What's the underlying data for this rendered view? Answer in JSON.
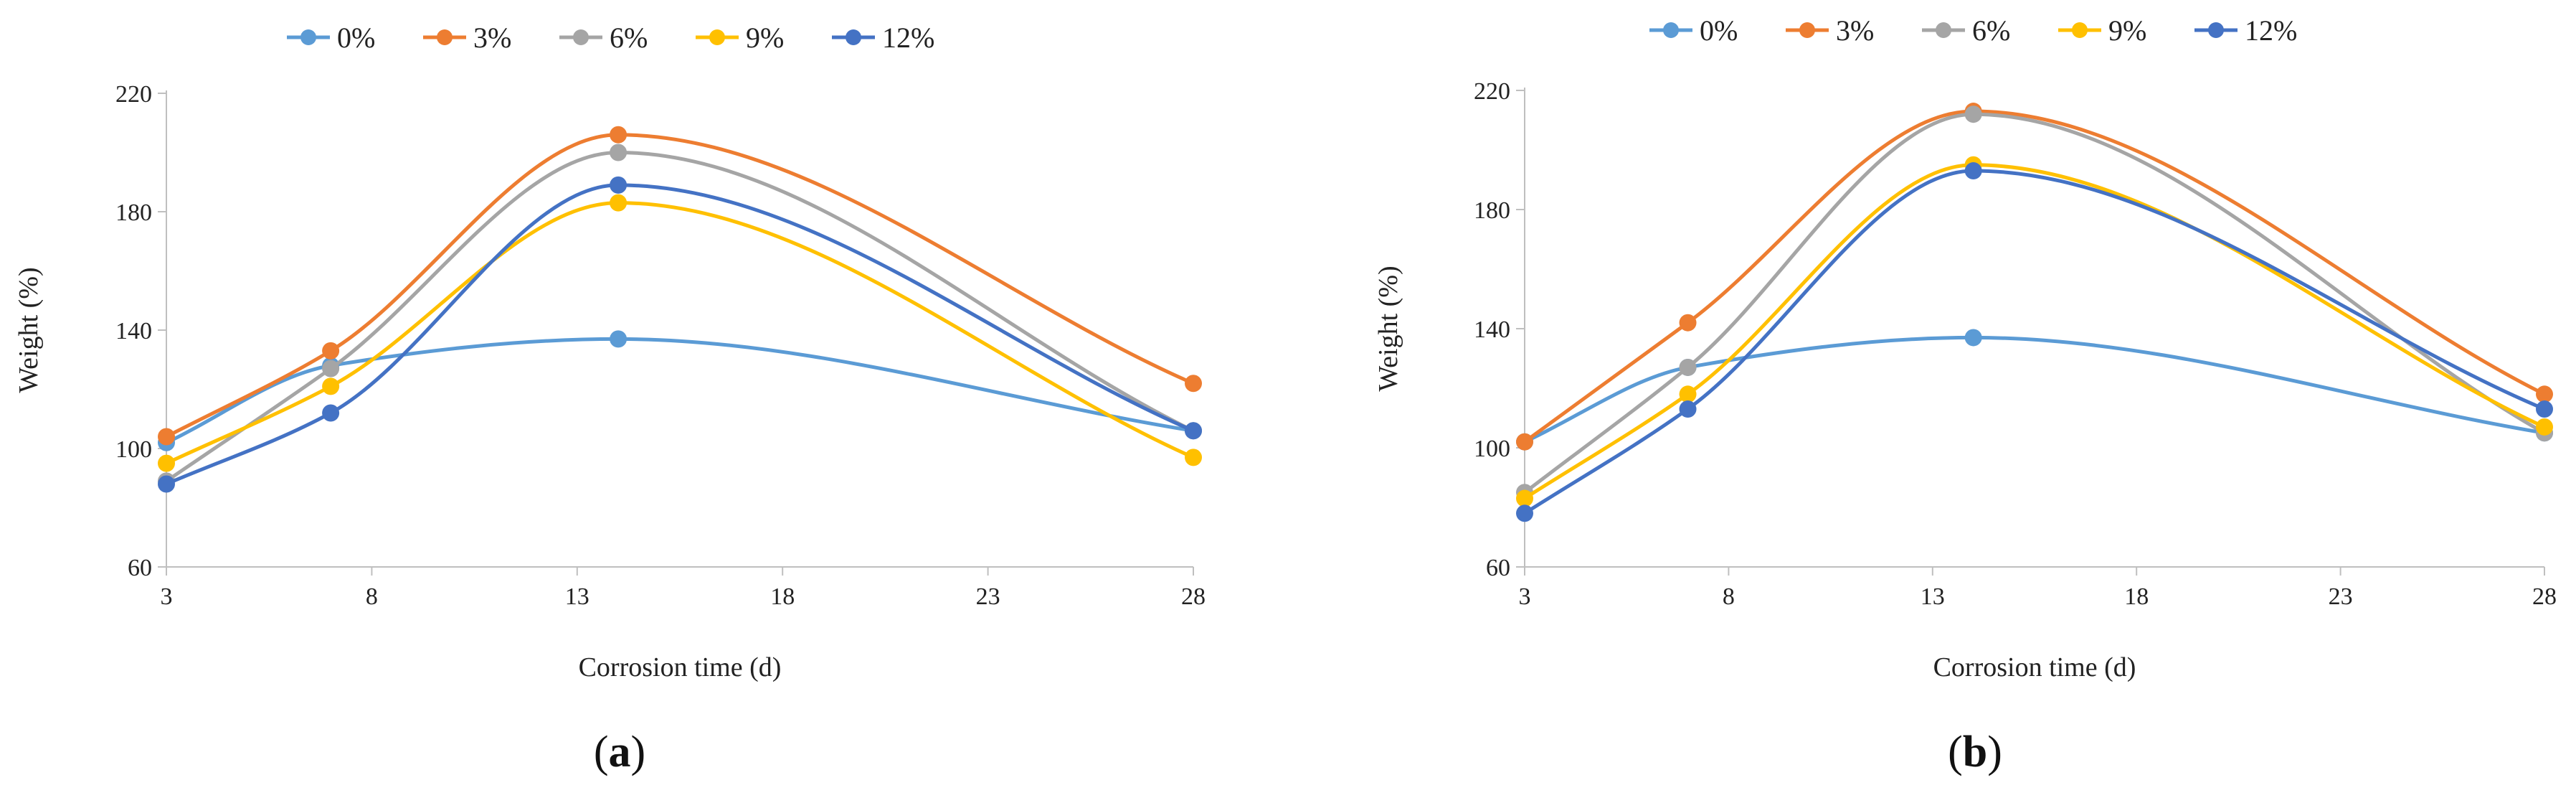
{
  "chart_data": [
    {
      "type": "line",
      "panel_label": "a",
      "title": "",
      "xlabel": "Corrosion time (d)",
      "ylabel": "Weight (%)",
      "xlim": [
        3,
        28
      ],
      "ylim": [
        60,
        220
      ],
      "xticks": [
        3,
        8,
        13,
        18,
        23,
        28
      ],
      "yticks": [
        60,
        100,
        140,
        180,
        220
      ],
      "legend_position": "top",
      "grid": false,
      "x": [
        3,
        7,
        14,
        28
      ],
      "series": [
        {
          "name": "0%",
          "color": "#5B9BD5",
          "values": [
            102,
            128,
            137,
            106
          ]
        },
        {
          "name": "3%",
          "color": "#ED7D31",
          "values": [
            104,
            133,
            206,
            122
          ]
        },
        {
          "name": "6%",
          "color": "#A5A5A5",
          "values": [
            89,
            127,
            200,
            106
          ]
        },
        {
          "name": "9%",
          "color": "#FFC000",
          "values": [
            95,
            121,
            183,
            97
          ]
        },
        {
          "name": "12%",
          "color": "#4472C4",
          "values": [
            88,
            112,
            189,
            106
          ]
        }
      ]
    },
    {
      "type": "line",
      "panel_label": "b",
      "title": "",
      "xlabel": "Corrosion time (d)",
      "ylabel": "Weight (%)",
      "xlim": [
        3,
        28
      ],
      "ylim": [
        60,
        220
      ],
      "xticks": [
        3,
        8,
        13,
        18,
        23,
        28
      ],
      "yticks": [
        60,
        100,
        140,
        180,
        220
      ],
      "legend_position": "top",
      "grid": false,
      "x": [
        3,
        7,
        14,
        28
      ],
      "series": [
        {
          "name": "0%",
          "color": "#5B9BD5",
          "values": [
            102,
            127,
            137,
            105
          ]
        },
        {
          "name": "3%",
          "color": "#ED7D31",
          "values": [
            102,
            142,
            213,
            118
          ]
        },
        {
          "name": "6%",
          "color": "#A5A5A5",
          "values": [
            85,
            127,
            212,
            105
          ]
        },
        {
          "name": "9%",
          "color": "#FFC000",
          "values": [
            83,
            118,
            195,
            107
          ]
        },
        {
          "name": "12%",
          "color": "#4472C4",
          "values": [
            78,
            113,
            193,
            113
          ]
        }
      ]
    }
  ]
}
